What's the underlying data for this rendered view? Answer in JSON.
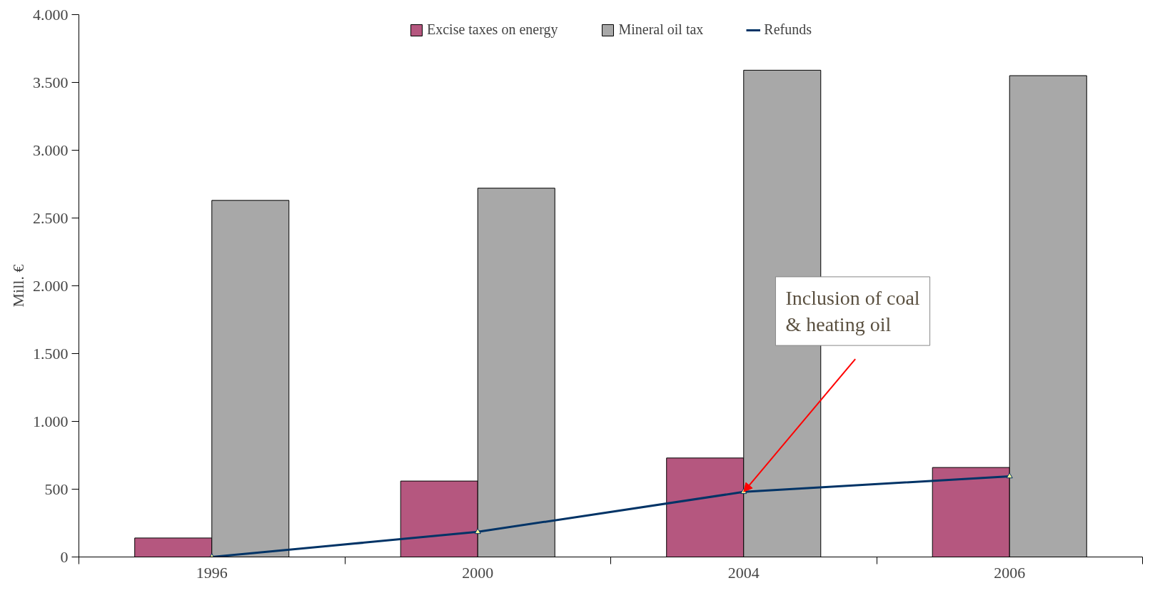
{
  "chart_data": {
    "type": "bar",
    "ylabel": "Mill. €",
    "categories": [
      "1996",
      "2000",
      "2004",
      "2006"
    ],
    "series": [
      {
        "name": "Excise taxes on energy",
        "color": "#b5577f",
        "values": [
          140,
          560,
          730,
          660
        ]
      },
      {
        "name": "Mineral oil tax",
        "color": "#a8a8a8",
        "values": [
          2630,
          2720,
          3590,
          3550
        ]
      },
      {
        "name": "Refunds",
        "type": "line",
        "color": "#003366",
        "values": [
          0,
          185,
          480,
          595
        ]
      }
    ],
    "ylim": [
      0,
      4000
    ],
    "yticks": [
      {
        "value": 0,
        "label": "0"
      },
      {
        "value": 500,
        "label": "500"
      },
      {
        "value": 1000,
        "label": "1.000"
      },
      {
        "value": 1500,
        "label": "1.500"
      },
      {
        "value": 2000,
        "label": "2.000"
      },
      {
        "value": 2500,
        "label": "2.500"
      },
      {
        "value": 3000,
        "label": "3.000"
      },
      {
        "value": 3500,
        "label": "3.500"
      },
      {
        "value": 4000,
        "label": "4.000"
      }
    ],
    "annotations": [
      {
        "text": "Inclusion of coal\n& heating oil",
        "x": "2004",
        "y": 480
      }
    ],
    "grid": false,
    "legend": "top",
    "marker": "triangle",
    "line_style": "solid"
  }
}
